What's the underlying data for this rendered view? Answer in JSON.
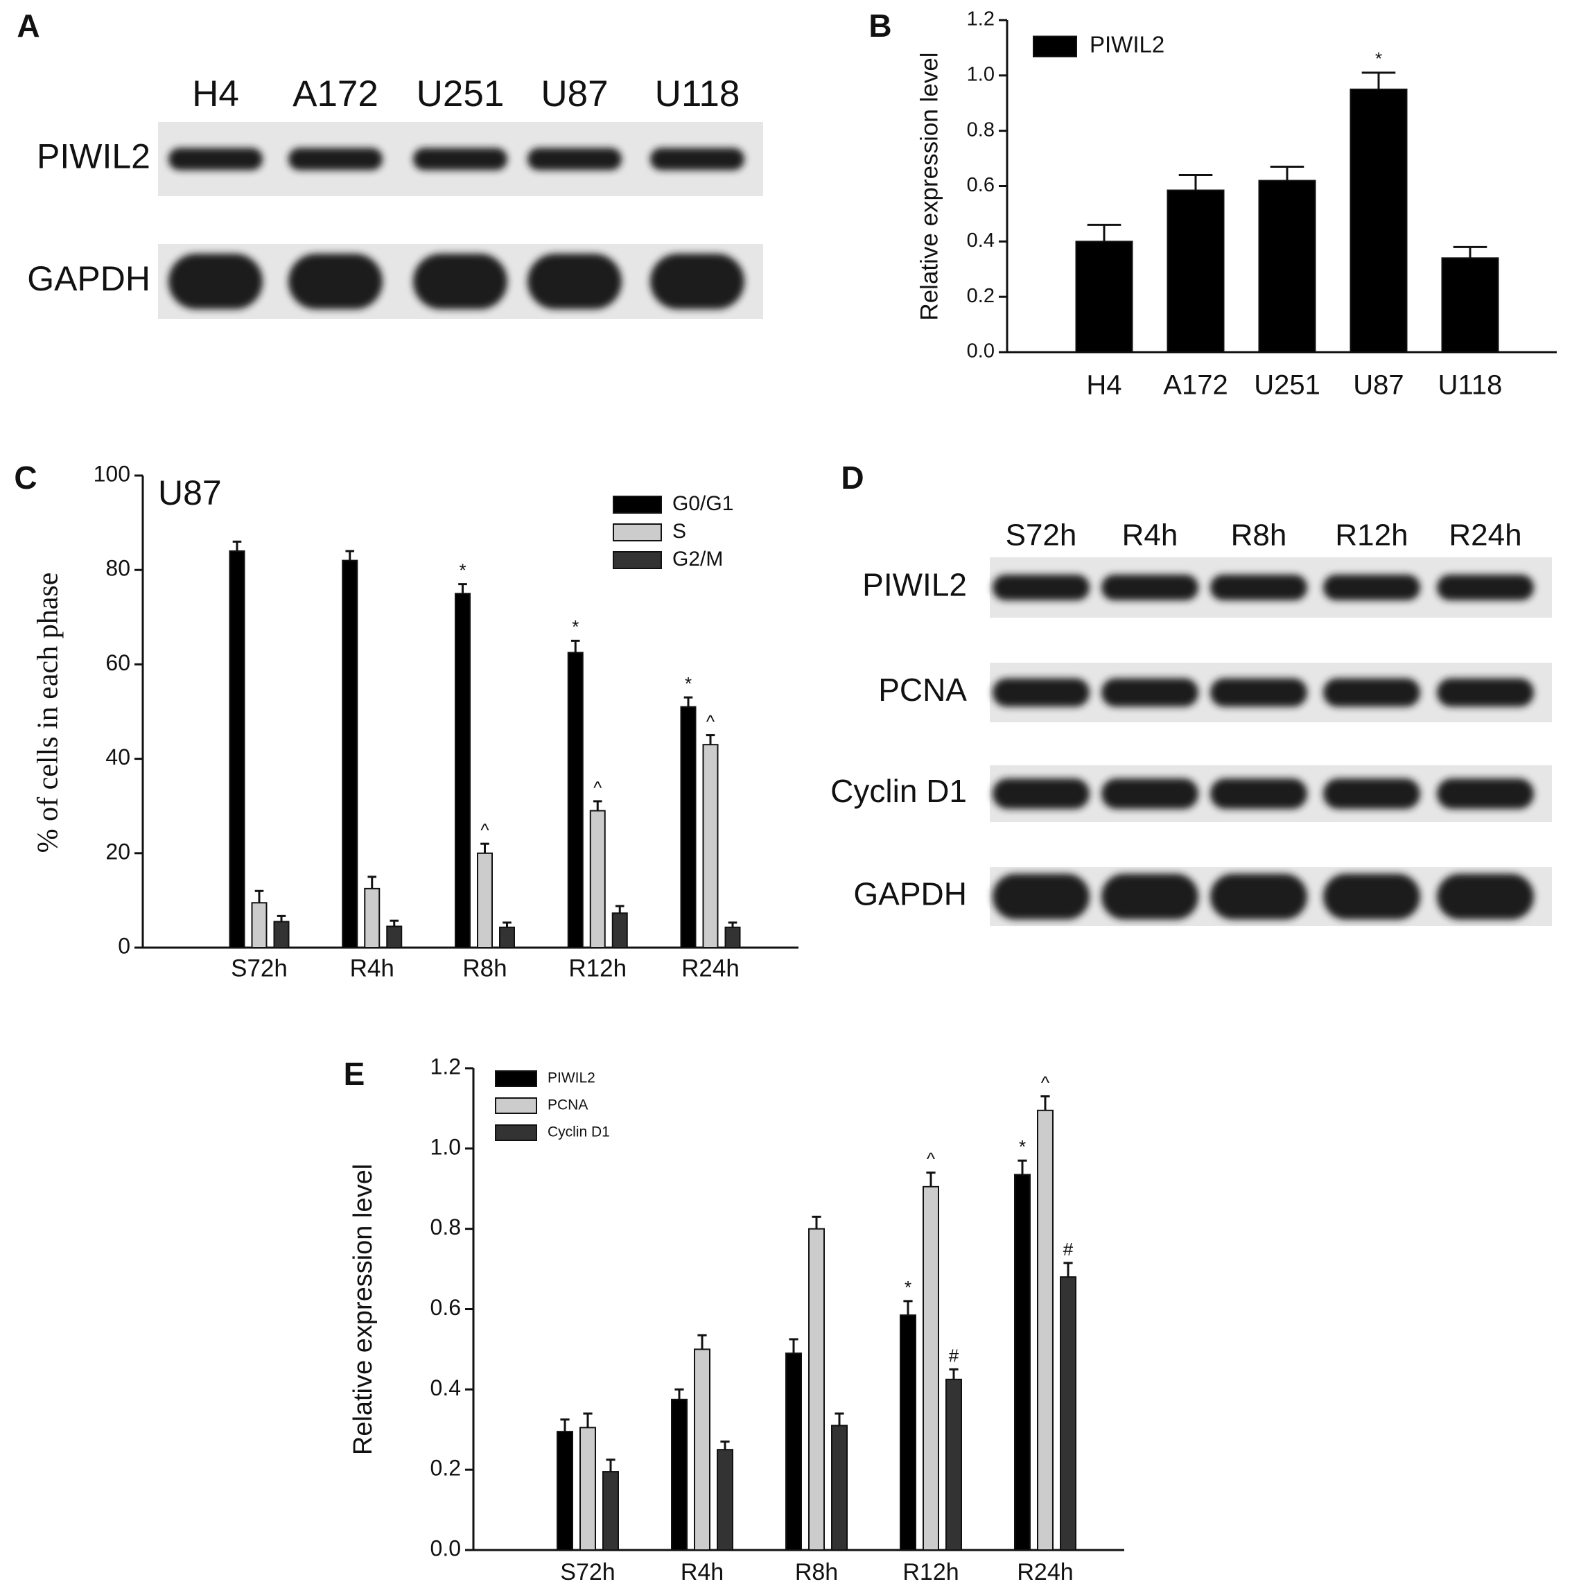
{
  "blots": [
    {
      "panel": "A",
      "lanes": [
        "H4",
        "A172",
        "U251",
        "U87",
        "U118"
      ],
      "rows": [
        "PIWIL2",
        "GAPDH"
      ]
    },
    {
      "panel": "D",
      "lanes": [
        "S72h",
        "R4h",
        "R8h",
        "R12h",
        "R24h"
      ],
      "rows": [
        "PIWIL2",
        "PCNA",
        "Cyclin D1",
        "GAPDH"
      ]
    }
  ],
  "chart_data": [
    {
      "type": "bar",
      "panel": "B",
      "ylabel": "Relative expression level",
      "categories": [
        "H4",
        "A172",
        "U251",
        "U87",
        "U118"
      ],
      "series": [
        {
          "name": "PIWIL2",
          "color": "#000000",
          "values": [
            0.4,
            0.585,
            0.62,
            0.95,
            0.34
          ],
          "errors": [
            0.06,
            0.055,
            0.05,
            0.06,
            0.04
          ],
          "annotations": [
            null,
            null,
            null,
            "*",
            null
          ]
        }
      ],
      "ylim": [
        0,
        1.2
      ],
      "yticks": [
        {
          "value": 0,
          "label": "0.0"
        },
        0.2,
        0.4,
        0.6,
        0.8,
        {
          "value": 1,
          "label": "1.0"
        },
        1.2
      ],
      "legend": "upper left"
    },
    {
      "type": "bar",
      "panel": "C",
      "title": "U87",
      "ylabel": "% of cells in each phase",
      "categories": [
        "S72h",
        "R4h",
        "R8h",
        "R12h",
        "R24h"
      ],
      "series": [
        {
          "name": "G0/G1",
          "color": "#000000",
          "values": [
            84,
            82,
            75,
            62.5,
            51
          ],
          "errors": [
            2,
            2,
            2,
            2.5,
            2
          ],
          "annotations": [
            null,
            null,
            "*",
            "*",
            "*"
          ]
        },
        {
          "name": "S",
          "color": "#cccccc",
          "values": [
            9.5,
            12.5,
            20,
            29,
            43
          ],
          "errors": [
            2.5,
            2.5,
            2,
            2,
            2
          ],
          "annotations": [
            null,
            null,
            "^",
            "^",
            "^"
          ]
        },
        {
          "name": "G2/M",
          "color": "#333333",
          "values": [
            5.5,
            4.5,
            4.3,
            7.3,
            4.3
          ],
          "errors": [
            1.2,
            1.2,
            1,
            1.5,
            1
          ],
          "annotations": [
            null,
            null,
            null,
            null,
            null
          ]
        }
      ],
      "ylim": [
        0,
        100
      ],
      "yticks": [
        0,
        20,
        40,
        60,
        80,
        100
      ],
      "legend": "upper right"
    },
    {
      "type": "bar",
      "panel": "E",
      "ylabel": "Relative expression level",
      "categories": [
        "S72h",
        "R4h",
        "R8h",
        "R12h",
        "R24h"
      ],
      "series": [
        {
          "name": "PIWIL2",
          "color": "#000000",
          "values": [
            0.295,
            0.375,
            0.49,
            0.585,
            0.935
          ],
          "errors": [
            0.03,
            0.025,
            0.035,
            0.035,
            0.035
          ],
          "annotations": [
            null,
            null,
            null,
            "*",
            "*"
          ]
        },
        {
          "name": "PCNA",
          "color": "#cccccc",
          "values": [
            0.305,
            0.5,
            0.8,
            0.905,
            1.095
          ],
          "errors": [
            0.035,
            0.035,
            0.03,
            0.035,
            0.035
          ],
          "annotations": [
            null,
            null,
            null,
            "^",
            "^"
          ]
        },
        {
          "name": "Cyclin D1",
          "color": "#333333",
          "values": [
            0.195,
            0.25,
            0.31,
            0.425,
            0.68
          ],
          "errors": [
            0.03,
            0.02,
            0.03,
            0.025,
            0.035
          ],
          "annotations": [
            null,
            null,
            null,
            "#",
            "#"
          ]
        }
      ],
      "ylim": [
        0,
        1.2
      ],
      "yticks": [
        {
          "value": 0,
          "label": "0.0"
        },
        0.2,
        0.4,
        0.6,
        0.8,
        {
          "value": 1,
          "label": "1.0"
        },
        1.2
      ],
      "legend": "upper left"
    }
  ]
}
